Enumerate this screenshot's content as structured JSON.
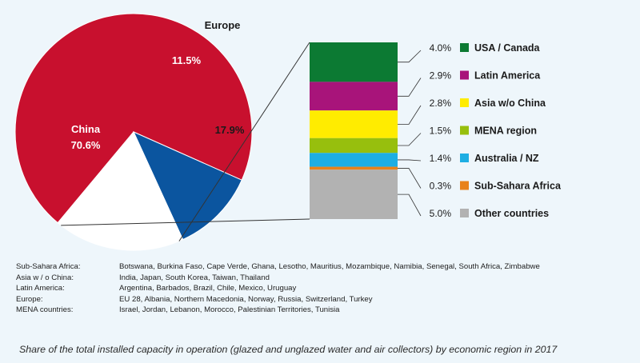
{
  "chart_data": {
    "type": "pie",
    "pie": {
      "slices": [
        {
          "label": "China",
          "value": 70.6,
          "value_label": "70.6%",
          "color": "#c8102e"
        },
        {
          "label": "Europe",
          "value": 11.5,
          "value_label": "11.5%",
          "color": "#0b559f"
        },
        {
          "label": "",
          "value": 17.9,
          "value_label": "17.9%",
          "color": "#ffffff"
        }
      ]
    },
    "breakdown": {
      "type": "stacked-bar",
      "segments": [
        {
          "name": "USA / Canada",
          "value": 4.0,
          "value_label": "4.0%",
          "color": "#0c7a33"
        },
        {
          "name": "Latin America",
          "value": 2.9,
          "value_label": "2.9%",
          "color": "#a8147a"
        },
        {
          "name": "Asia w/o China",
          "value": 2.8,
          "value_label": "2.8%",
          "color": "#ffec00"
        },
        {
          "name": "MENA region",
          "value": 1.5,
          "value_label": "1.5%",
          "color": "#97bf0d"
        },
        {
          "name": "Australia / NZ",
          "value": 1.4,
          "value_label": "1.4%",
          "color": "#1eaee3"
        },
        {
          "name": "Sub-Sahara Africa",
          "value": 0.3,
          "value_label": "0.3%",
          "color": "#e8821a"
        },
        {
          "name": "Other countries",
          "value": 5.0,
          "value_label": "5.0%",
          "color": "#b2b2b2"
        }
      ]
    }
  },
  "notes": [
    {
      "key": "Sub-Sahara Africa:",
      "value": "Botswana, Burkina Faso, Cape Verde, Ghana, Lesotho, Mauritius, Mozambique, Namibia, Senegal, South Africa, Zimbabwe"
    },
    {
      "key": "Asia w / o China:",
      "value": "India, Japan, South Korea, Taiwan, Thailand"
    },
    {
      "key": "Latin America:",
      "value": "Argentina, Barbados, Brazil, Chile, Mexico, Uruguay"
    },
    {
      "key": "Europe:",
      "value": "EU 28, Albania, Northern Macedonia, Norway, Russia, Switzerland, Turkey"
    },
    {
      "key": "MENA countries:",
      "value": "Israel, Jordan, Lebanon, Morocco, Palestinian Territories, Tunisia"
    }
  ],
  "caption": "Share of the total installed capacity in operation (glazed and unglazed water and air collectors) by economic region in 2017"
}
